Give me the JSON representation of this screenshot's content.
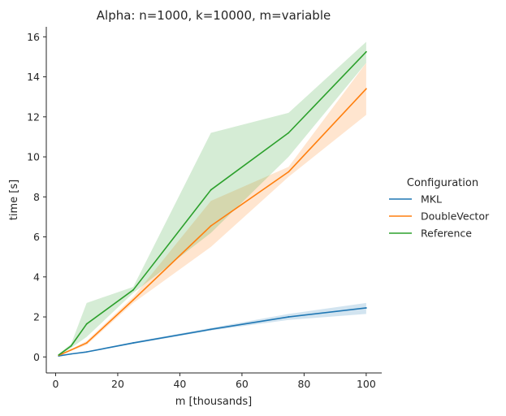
{
  "chart_data": {
    "type": "line",
    "title": "Alpha: n=1000, k=10000, m=variable",
    "xlabel": "m [thousands]",
    "ylabel": "time [s]",
    "xlim": [
      -3,
      105
    ],
    "ylim": [
      -0.8,
      16.5
    ],
    "xticks": [
      0,
      20,
      40,
      60,
      80,
      100
    ],
    "yticks": [
      0,
      2,
      4,
      6,
      8,
      10,
      12,
      14,
      16
    ],
    "grid": false,
    "legend": {
      "title": "Configuration",
      "placement": "right"
    },
    "series": [
      {
        "name": "MKL",
        "color": "#1f77b4",
        "x": [
          1,
          5,
          10,
          25,
          50,
          75,
          100
        ],
        "y": [
          0.05,
          0.15,
          0.25,
          0.7,
          1.38,
          2.0,
          2.45
        ],
        "lower": [
          0.04,
          0.13,
          0.22,
          0.65,
          1.32,
          1.85,
          2.15
        ],
        "upper": [
          0.06,
          0.17,
          0.28,
          0.75,
          1.45,
          2.15,
          2.7
        ]
      },
      {
        "name": "DoubleVector",
        "color": "#ff7f0e",
        "x": [
          1,
          5,
          10,
          25,
          50,
          75,
          100
        ],
        "y": [
          0.08,
          0.35,
          0.7,
          2.85,
          6.55,
          9.25,
          13.4
        ],
        "lower": [
          0.05,
          0.3,
          0.6,
          2.7,
          5.5,
          9.0,
          12.1
        ],
        "upper": [
          0.1,
          0.4,
          0.8,
          3.0,
          7.8,
          9.5,
          14.7
        ]
      },
      {
        "name": "Reference",
        "color": "#2ca02c",
        "x": [
          1,
          5,
          10,
          25,
          50,
          75,
          100
        ],
        "y": [
          0.1,
          0.55,
          1.65,
          3.35,
          8.35,
          11.2,
          15.25
        ],
        "lower": [
          0.05,
          0.45,
          1.0,
          3.2,
          6.2,
          10.0,
          14.7
        ],
        "upper": [
          0.15,
          0.65,
          2.7,
          3.5,
          11.2,
          12.2,
          15.75
        ]
      }
    ]
  }
}
